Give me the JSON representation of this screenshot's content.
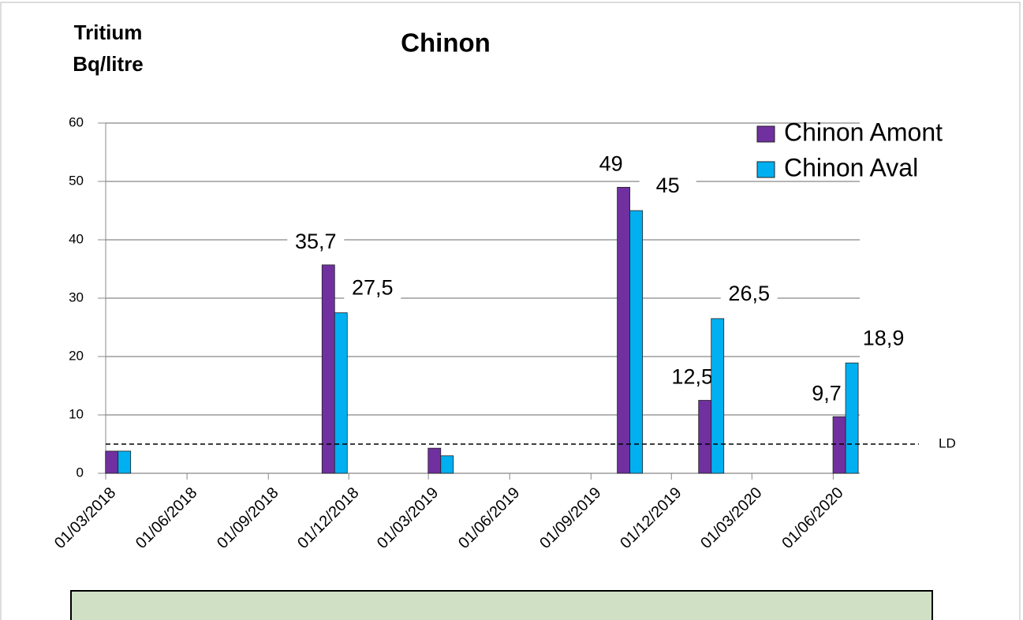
{
  "chart_data": {
    "type": "bar",
    "title": "Chinon",
    "y_label_lines": [
      "Tritium",
      "Bq/litre"
    ],
    "x": [
      "2018-03-15",
      "2018-11-15",
      "2019-03-15",
      "2019-10-15",
      "2020-01-15",
      "2020-06-15"
    ],
    "series": [
      {
        "name": "Chinon Amont",
        "color": "#7030a0",
        "values": [
          3.8,
          35.7,
          4.3,
          49,
          12.5,
          9.7
        ],
        "value_labels": [
          null,
          "35,7",
          null,
          "49",
          "12,5",
          "9,7"
        ]
      },
      {
        "name": "Chinon Aval",
        "color": "#00b0f0",
        "values": [
          3.8,
          27.5,
          3,
          45,
          26.5,
          18.9
        ],
        "value_labels": [
          null,
          "27,5",
          null,
          "45",
          "26,5",
          "18,9"
        ]
      }
    ],
    "xlim": [
      "2018-03-01",
      "2020-07-01"
    ],
    "xticks": [
      {
        "value": "2018-03-01",
        "label": "01/03/2018"
      },
      {
        "value": "2018-06-01",
        "label": "01/06/2018"
      },
      {
        "value": "2018-09-01",
        "label": "01/09/2018"
      },
      {
        "value": "2018-12-01",
        "label": "01/12/2018"
      },
      {
        "value": "2019-03-01",
        "label": "01/03/2019"
      },
      {
        "value": "2019-06-01",
        "label": "01/06/2019"
      },
      {
        "value": "2019-09-01",
        "label": "01/09/2019"
      },
      {
        "value": "2019-12-01",
        "label": "01/12/2019"
      },
      {
        "value": "2020-03-01",
        "label": "01/03/2020"
      },
      {
        "value": "2020-06-01",
        "label": "01/06/2020"
      }
    ],
    "ylim": [
      0,
      60
    ],
    "yticks": [
      0,
      10,
      20,
      30,
      40,
      50,
      60
    ],
    "grid": true,
    "reference_line": {
      "value": 5,
      "label": "LD"
    },
    "legend": "top-right"
  }
}
